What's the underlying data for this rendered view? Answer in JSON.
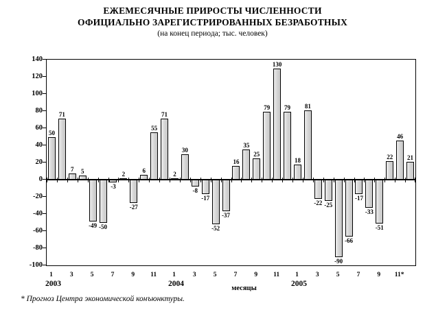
{
  "title": {
    "line1": "ЕЖЕМЕСЯЧНЫЕ ПРИРОСТЫ ЧИСЛЕННОСТИ",
    "line2": "ОФИЦИАЛЬНО ЗАРЕГИСТРИРОВАННЫХ БЕЗРАБОТНЫХ",
    "subtitle": "(на конец периода; тыс. человек)"
  },
  "footnote": "* Прогноз Центра экономической конъюнктуры.",
  "chart_data": {
    "type": "bar",
    "title": "ЕЖЕМЕСЯЧНЫЕ ПРИРОСТЫ ЧИСЛЕННОСТИ ОФИЦИАЛЬНО ЗАРЕГИСТРИРОВАННЫХ БЕЗРАБОТНЫХ",
    "subtitle": "(на конец периода; тыс. человек)",
    "xlabel": "месяцы",
    "ylabel": "",
    "ylim": [
      -100,
      140
    ],
    "yticks": [
      140,
      120,
      100,
      80,
      60,
      40,
      20,
      0,
      -20,
      -40,
      -60,
      -80,
      -100
    ],
    "grid": false,
    "legend": "none",
    "bar_fill": "#d9d9d9",
    "bar_border": "#000000",
    "series": [
      {
        "year": "2003",
        "values": [
          50,
          71,
          7,
          5,
          -49,
          -50,
          -3,
          2,
          -27,
          6,
          55,
          71
        ]
      },
      {
        "year": "2004",
        "values": [
          2,
          30,
          -8,
          -17,
          -52,
          -37,
          16,
          35,
          25,
          79,
          130,
          79
        ]
      },
      {
        "year": "2005",
        "values": [
          18,
          81,
          -22,
          -25,
          -90,
          -66,
          -17,
          -33,
          -51,
          22,
          46,
          21
        ]
      }
    ],
    "month_tick_labels": [
      "1",
      "3",
      "5",
      "7",
      "9",
      "11"
    ],
    "last_month_label": "11*",
    "value_labels_shown": true
  }
}
